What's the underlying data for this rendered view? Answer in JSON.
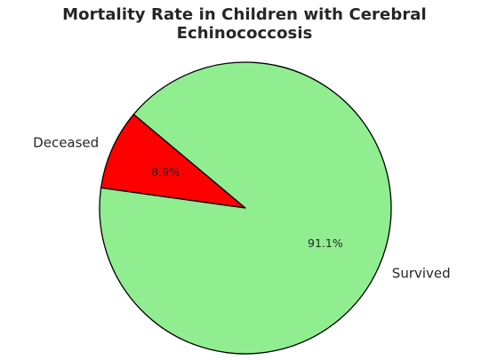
{
  "chart_data": {
    "type": "pie",
    "title": "Mortality Rate in Children with Cerebral Echinococcosis",
    "slices": [
      {
        "label": "Deceased",
        "value": 8.9,
        "value_label": "8.9%",
        "color": "#ff0000"
      },
      {
        "label": "Survived",
        "value": 91.1,
        "value_label": "91.1%",
        "color": "#90ee90"
      }
    ],
    "start_angle_deg": 140,
    "legend": "none"
  }
}
